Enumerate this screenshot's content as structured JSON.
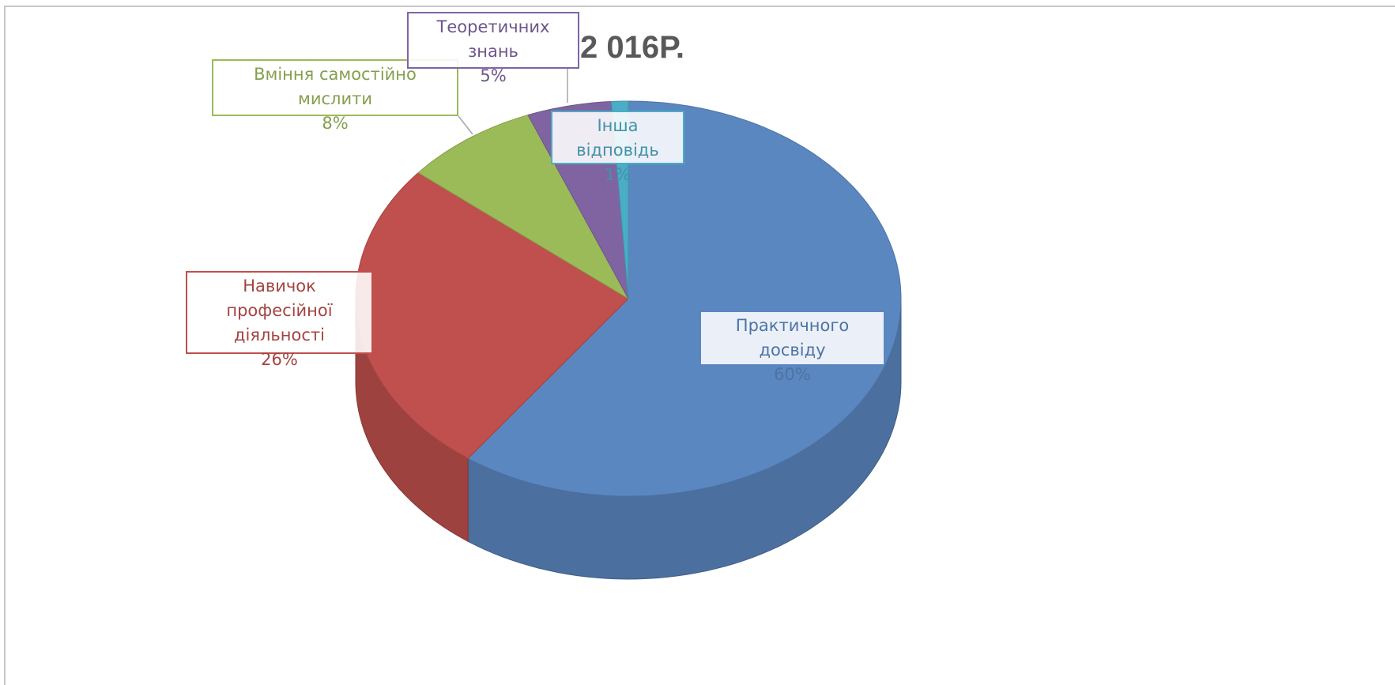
{
  "chart_data": {
    "type": "pie",
    "title": "2 016Р.",
    "categories": [
      "Практичного досвіду",
      "Навичок професійної діяльності",
      "Вміння самостійно мислити",
      "Теоретичних знань",
      "Інша відповідь"
    ],
    "values": [
      60,
      26,
      8,
      5,
      1
    ],
    "value_labels": [
      "60%",
      "26%",
      "8%",
      "5%",
      "1%"
    ],
    "colors": [
      "#5b87c1",
      "#c0504d",
      "#9bbb59",
      "#8064a2",
      "#4bacc6"
    ]
  }
}
